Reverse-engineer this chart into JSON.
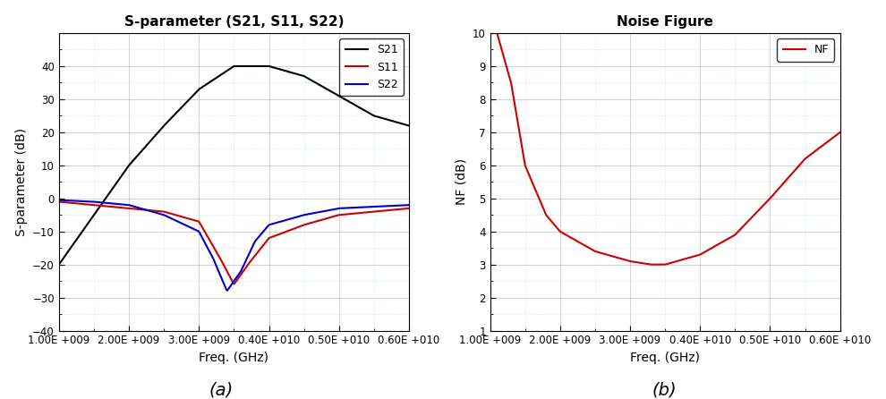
{
  "title_left": "S-parameter (S21, S11, S22)",
  "title_right": "Noise Figure",
  "xlabel": "Freq. (GHz)",
  "ylabel_left": "S-parameter (dB)",
  "ylabel_right": "NF (dB)",
  "caption_left": "(a)",
  "caption_right": "(b)",
  "freq_start": 1000000000.0,
  "freq_end": 6000000000.0,
  "ylim_left": [
    -40,
    50
  ],
  "yticks_left": [
    -40,
    -30,
    -20,
    -10,
    0,
    10,
    20,
    30,
    40
  ],
  "ylim_right": [
    1,
    10
  ],
  "yticks_right": [
    1,
    2,
    3,
    4,
    5,
    6,
    7,
    8,
    9,
    10
  ],
  "xticks": [
    1000000000.0,
    2000000000.0,
    3000000000.0,
    4000000000.0,
    5000000000.0,
    6000000000.0
  ],
  "s21_color": "#000000",
  "s11_color": "#cc0000",
  "s22_color": "#0000cc",
  "nf_color": "#cc0000",
  "legend_left": [
    "S21",
    "S11",
    "S22"
  ],
  "legend_right": [
    "NF"
  ],
  "background_color": "#ffffff",
  "grid_minor_color": "#b0d8e8",
  "grid_major_color": "#aaaaaa",
  "s21_x": [
    1.0,
    1.5,
    2.0,
    2.5,
    3.0,
    3.5,
    4.0,
    4.5,
    5.0,
    5.5,
    6.0
  ],
  "s21_y": [
    -20,
    -5,
    10,
    22,
    33,
    40,
    40,
    37,
    31,
    25,
    22
  ],
  "s11_x": [
    1.0,
    1.5,
    2.0,
    2.5,
    3.0,
    3.3,
    3.5,
    3.7,
    4.0,
    4.5,
    5.0,
    5.5,
    6.0
  ],
  "s11_y": [
    -1,
    -2,
    -3,
    -4,
    -7,
    -18,
    -26,
    -20,
    -12,
    -8,
    -5,
    -4,
    -3
  ],
  "s22_x": [
    1.0,
    1.5,
    2.0,
    2.5,
    3.0,
    3.2,
    3.4,
    3.6,
    3.8,
    4.0,
    4.5,
    5.0,
    5.5,
    6.0
  ],
  "s22_y": [
    -0.5,
    -1,
    -2,
    -5,
    -10,
    -18,
    -28,
    -22,
    -13,
    -8,
    -5,
    -3,
    -2.5,
    -2
  ],
  "nf_x": [
    1.1,
    1.3,
    1.5,
    1.8,
    2.0,
    2.5,
    3.0,
    3.3,
    3.5,
    4.0,
    4.5,
    5.0,
    5.5,
    6.0
  ],
  "nf_y": [
    10,
    8.5,
    6.0,
    4.5,
    4.0,
    3.4,
    3.1,
    3.0,
    3.0,
    3.3,
    3.9,
    5.0,
    6.2,
    7.0
  ]
}
